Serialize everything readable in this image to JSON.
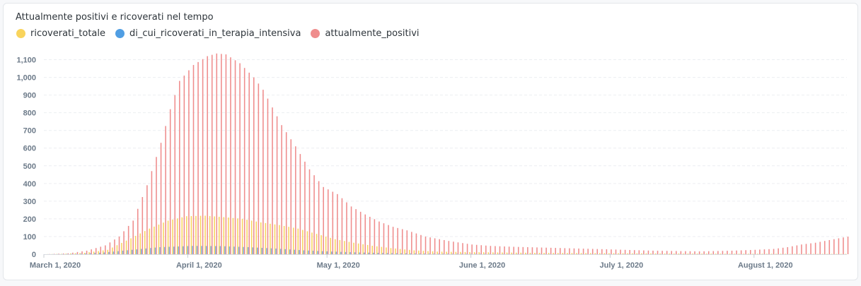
{
  "card": {
    "title": "Attualmente positivi e ricoverati nel tempo"
  },
  "legend": [
    {
      "label": "ricoverati_totale",
      "color": "#f9d45c"
    },
    {
      "label": "di_cui_ricoverati_in_terapia_intensiva",
      "color": "#509ee3"
    },
    {
      "label": "attualmente_positivi",
      "color": "#ef8c8c"
    }
  ],
  "chart_data": {
    "type": "bar",
    "title": "Attualmente positivi e ricoverati nel tempo",
    "x_start": "2020-03-01",
    "x_end": "2020-08-21",
    "x_ticks": [
      "March 1, 2020",
      "April 1, 2020",
      "May 1, 2020",
      "June 1, 2020",
      "July 1, 2020",
      "August 1, 2020"
    ],
    "y_ticks": [
      "0",
      "100",
      "200",
      "300",
      "400",
      "500",
      "600",
      "700",
      "800",
      "900",
      "1,000",
      "1,100"
    ],
    "ylim": [
      0,
      1150
    ],
    "grid": true,
    "legend_position": "top-left",
    "series": [
      {
        "name": "attualmente_positivi",
        "color": "#ef8c8c",
        "points": [
          [
            "2020-03-01",
            0
          ],
          [
            "2020-03-06",
            5
          ],
          [
            "2020-03-10",
            20
          ],
          [
            "2020-03-14",
            50
          ],
          [
            "2020-03-17",
            100
          ],
          [
            "2020-03-20",
            190
          ],
          [
            "2020-03-23",
            390
          ],
          [
            "2020-03-26",
            630
          ],
          [
            "2020-03-28",
            820
          ],
          [
            "2020-03-30",
            980
          ],
          [
            "2020-04-02",
            1070
          ],
          [
            "2020-04-05",
            1120
          ],
          [
            "2020-04-07",
            1135
          ],
          [
            "2020-04-09",
            1130
          ],
          [
            "2020-04-12",
            1080
          ],
          [
            "2020-04-15",
            1000
          ],
          [
            "2020-04-17",
            930
          ],
          [
            "2020-04-19",
            830
          ],
          [
            "2020-04-21",
            730
          ],
          [
            "2020-04-24",
            610
          ],
          [
            "2020-04-27",
            480
          ],
          [
            "2020-04-30",
            380
          ],
          [
            "2020-05-03",
            340
          ],
          [
            "2020-05-06",
            270
          ],
          [
            "2020-05-09",
            225
          ],
          [
            "2020-05-12",
            185
          ],
          [
            "2020-05-15",
            155
          ],
          [
            "2020-05-18",
            135
          ],
          [
            "2020-05-22",
            100
          ],
          [
            "2020-05-27",
            75
          ],
          [
            "2020-06-01",
            55
          ],
          [
            "2020-06-05",
            47
          ],
          [
            "2020-06-10",
            42
          ],
          [
            "2020-06-20",
            35
          ],
          [
            "2020-06-30",
            28
          ],
          [
            "2020-07-10",
            20
          ],
          [
            "2020-07-20",
            16
          ],
          [
            "2020-07-27",
            20
          ],
          [
            "2020-08-01",
            25
          ],
          [
            "2020-08-05",
            30
          ],
          [
            "2020-08-08",
            40
          ],
          [
            "2020-08-11",
            55
          ],
          [
            "2020-08-14",
            65
          ],
          [
            "2020-08-17",
            80
          ],
          [
            "2020-08-21",
            100
          ]
        ]
      },
      {
        "name": "ricoverati_totale",
        "color": "#f9d45c",
        "points": [
          [
            "2020-03-01",
            0
          ],
          [
            "2020-03-05",
            2
          ],
          [
            "2020-03-10",
            8
          ],
          [
            "2020-03-15",
            25
          ],
          [
            "2020-03-20",
            90
          ],
          [
            "2020-03-24",
            145
          ],
          [
            "2020-03-28",
            190
          ],
          [
            "2020-04-01",
            215
          ],
          [
            "2020-04-05",
            218
          ],
          [
            "2020-04-09",
            210
          ],
          [
            "2020-04-13",
            200
          ],
          [
            "2020-04-17",
            180
          ],
          [
            "2020-04-21",
            165
          ],
          [
            "2020-04-25",
            145
          ],
          [
            "2020-04-29",
            115
          ],
          [
            "2020-05-03",
            85
          ],
          [
            "2020-05-07",
            65
          ],
          [
            "2020-05-11",
            48
          ],
          [
            "2020-05-15",
            35
          ],
          [
            "2020-05-20",
            22
          ],
          [
            "2020-05-25",
            15
          ],
          [
            "2020-06-01",
            12
          ],
          [
            "2020-06-15",
            8
          ],
          [
            "2020-07-01",
            6
          ],
          [
            "2020-07-15",
            4
          ],
          [
            "2020-08-01",
            3
          ],
          [
            "2020-08-21",
            2
          ]
        ]
      },
      {
        "name": "di_cui_ricoverati_in_terapia_intensiva",
        "color": "#509ee3",
        "points": [
          [
            "2020-03-01",
            0
          ],
          [
            "2020-03-08",
            2
          ],
          [
            "2020-03-14",
            10
          ],
          [
            "2020-03-20",
            25
          ],
          [
            "2020-03-26",
            40
          ],
          [
            "2020-04-02",
            47
          ],
          [
            "2020-04-08",
            46
          ],
          [
            "2020-04-14",
            40
          ],
          [
            "2020-04-20",
            32
          ],
          [
            "2020-04-26",
            22
          ],
          [
            "2020-05-02",
            15
          ],
          [
            "2020-05-08",
            10
          ],
          [
            "2020-05-15",
            6
          ],
          [
            "2020-05-25",
            3
          ],
          [
            "2020-06-05",
            2
          ],
          [
            "2020-06-20",
            1
          ],
          [
            "2020-08-21",
            0
          ]
        ]
      }
    ]
  }
}
